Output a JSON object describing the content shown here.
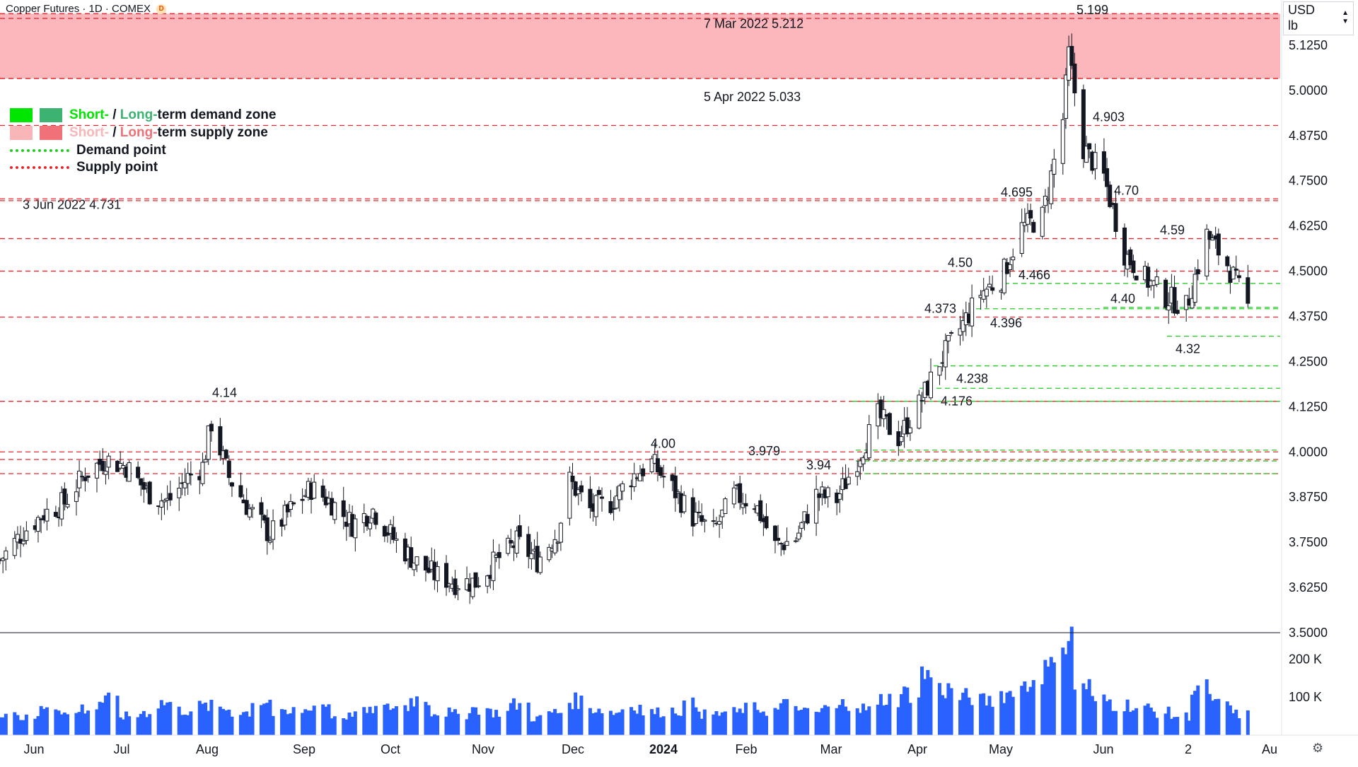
{
  "header": {
    "title": "Copper Futures · 1D · COMEX",
    "badge": "D"
  },
  "price_scale": {
    "currency": "USD",
    "unit": "lb",
    "ticks": [
      "5.1250",
      "5.0000",
      "4.8750",
      "4.7500",
      "4.6250",
      "4.5000",
      "4.3750",
      "4.2500",
      "4.1250",
      "4.0000",
      "3.8750",
      "3.7500",
      "3.6250",
      "3.5000"
    ]
  },
  "volume_scale": {
    "ticks": [
      "200 K",
      "100 K"
    ]
  },
  "time_axis": {
    "labels": [
      "Jun",
      "Jul",
      "Aug",
      "Sep",
      "Oct",
      "Nov",
      "Dec",
      "2024",
      "Feb",
      "Mar",
      "Apr",
      "May",
      "Jun",
      "2",
      "Au"
    ]
  },
  "legend": [
    {
      "prefix": "Short-",
      "sep": " / ",
      "mid": "Long-",
      "suffix": "term demand zone",
      "short_color": "#00e600",
      "long_color": "#3cb371"
    },
    {
      "prefix": "Short-",
      "sep": " / ",
      "mid": "Long-",
      "suffix": "term supply zone",
      "short_color": "#f8b6b9",
      "long_color": "#f07178"
    },
    {
      "label": "Demand point",
      "color": "#22cc22"
    },
    {
      "label": "Supply point",
      "color": "#e8282e"
    }
  ],
  "annotations": [
    {
      "text": "7 Mar 2022 5.212",
      "price": 5.212
    },
    {
      "text": "5 Apr 2022 5.033",
      "price": 5.033
    },
    {
      "text": "3 Jun 2022 4.731",
      "price": 4.731
    }
  ],
  "chart_data": {
    "type": "candlestick",
    "x_range": [
      "2023-05-24",
      "2024-08-02"
    ],
    "ylim": [
      3.5,
      5.25
    ],
    "volume_ylim": [
      0,
      260000
    ],
    "candles": [
      [
        "2023-05-24",
        3.7
      ],
      [
        "2023-06-01",
        3.78
      ],
      [
        "2023-06-08",
        3.83
      ],
      [
        "2023-06-15",
        3.86
      ],
      [
        "2023-06-22",
        3.94
      ],
      [
        "2023-06-29",
        3.98
      ],
      [
        "2023-07-06",
        3.96
      ],
      [
        "2023-07-13",
        3.89
      ],
      [
        "2023-07-20",
        3.86
      ],
      [
        "2023-07-27",
        3.93
      ],
      [
        "2023-08-01",
        3.96
      ],
      [
        "2023-08-04",
        4.08
      ],
      [
        "2023-08-10",
        3.93
      ],
      [
        "2023-08-17",
        3.84
      ],
      [
        "2023-08-24",
        3.77
      ],
      [
        "2023-08-31",
        3.84
      ],
      [
        "2023-09-07",
        3.9
      ],
      [
        "2023-09-14",
        3.86
      ],
      [
        "2023-09-21",
        3.8
      ],
      [
        "2023-09-28",
        3.84
      ],
      [
        "2023-10-05",
        3.76
      ],
      [
        "2023-10-12",
        3.7
      ],
      [
        "2023-10-19",
        3.66
      ],
      [
        "2023-10-26",
        3.64
      ],
      [
        "2023-11-02",
        3.64
      ],
      [
        "2023-11-09",
        3.7
      ],
      [
        "2023-11-16",
        3.75
      ],
      [
        "2023-11-23",
        3.7
      ],
      [
        "2023-11-30",
        3.78
      ],
      [
        "2023-12-04",
        3.92
      ],
      [
        "2023-12-11",
        3.84
      ],
      [
        "2023-12-18",
        3.86
      ],
      [
        "2023-12-25",
        3.93
      ],
      [
        "2024-01-01",
        3.97
      ],
      [
        "2024-01-08",
        3.9
      ],
      [
        "2024-01-15",
        3.82
      ],
      [
        "2024-01-22",
        3.78
      ],
      [
        "2024-01-29",
        3.88
      ],
      [
        "2024-02-05",
        3.86
      ],
      [
        "2024-02-12",
        3.74
      ],
      [
        "2024-02-19",
        3.76
      ],
      [
        "2024-02-26",
        3.88
      ],
      [
        "2024-03-04",
        3.87
      ],
      [
        "2024-03-11",
        3.98
      ],
      [
        "2024-03-18",
        4.1
      ],
      [
        "2024-03-25",
        4.04
      ],
      [
        "2024-04-01",
        4.13
      ],
      [
        "2024-04-08",
        4.25
      ],
      [
        "2024-04-15",
        4.34
      ],
      [
        "2024-04-22",
        4.44
      ],
      [
        "2024-04-29",
        4.48
      ],
      [
        "2024-05-06",
        4.62
      ],
      [
        "2024-05-13",
        4.65
      ],
      [
        "2024-05-20",
        4.92
      ],
      [
        "2024-05-22",
        5.1
      ],
      [
        "2024-05-27",
        4.84
      ],
      [
        "2024-06-03",
        4.76
      ],
      [
        "2024-06-10",
        4.55
      ],
      [
        "2024-06-17",
        4.48
      ],
      [
        "2024-06-24",
        4.43
      ],
      [
        "2024-07-01",
        4.4
      ],
      [
        "2024-07-08",
        4.6
      ],
      [
        "2024-07-15",
        4.52
      ],
      [
        "2024-07-22",
        4.4
      ]
    ],
    "volume": [
      60000,
      45000,
      80000,
      55000,
      70000,
      90000,
      50000,
      60000,
      85000,
      65000,
      75000,
      70000,
      60000,
      90000,
      55000,
      65000,
      80000,
      50000,
      60000,
      70000,
      75000,
      95000,
      60000,
      55000,
      70000,
      60000,
      80000,
      45000,
      60000,
      90000,
      70000,
      60000,
      75000,
      60000,
      65000,
      80000,
      55000,
      60000,
      70000,
      65000,
      80000,
      60000,
      70000,
      85000,
      70000,
      95000,
      110000,
      160000,
      120000,
      100000,
      90000,
      110000,
      130000,
      170000,
      250000,
      130000,
      90000,
      80000,
      70000,
      60000,
      50000,
      120000,
      80000,
      55000
    ],
    "demand_points": [
      {
        "label": "4.466",
        "price": 4.466
      },
      {
        "label": "4.396",
        "price": 4.396
      },
      {
        "label": "4.40",
        "price": 4.4
      },
      {
        "label": "4.32",
        "price": 4.32
      },
      {
        "label": "4.238",
        "price": 4.238
      },
      {
        "label": "4.176",
        "price": 4.176
      },
      {
        "label": "",
        "price": 4.14
      },
      {
        "label": "",
        "price": 4.005
      },
      {
        "label": "",
        "price": 3.975
      },
      {
        "label": "",
        "price": 3.94
      }
    ],
    "supply_points": [
      {
        "label": "5.199",
        "price": 5.199
      },
      {
        "label": "4.903",
        "price": 4.903
      },
      {
        "label": "4.70",
        "price": 4.7
      },
      {
        "label": "4.695",
        "price": 4.695
      },
      {
        "label": "4.59",
        "price": 4.59
      },
      {
        "label": "4.50",
        "price": 4.5
      },
      {
        "label": "4.373",
        "price": 4.373
      },
      {
        "label": "4.14",
        "price": 4.14
      },
      {
        "label": "4.00",
        "price": 4.0
      },
      {
        "label": "3.979",
        "price": 3.979
      },
      {
        "label": "3.94",
        "price": 3.94
      }
    ],
    "long_supply_zone": {
      "from": 5.033,
      "to": 5.212
    }
  }
}
